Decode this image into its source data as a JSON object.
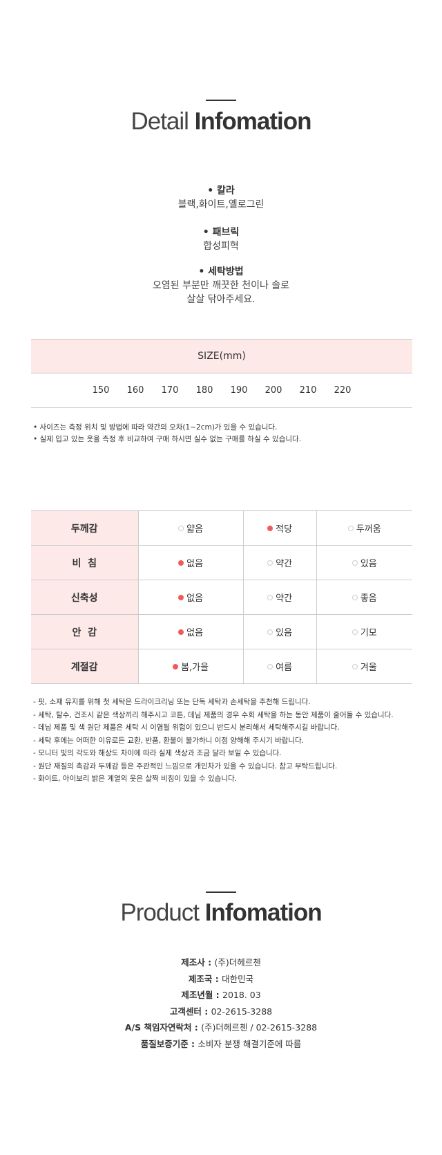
{
  "detail": {
    "title_light": "Detail",
    "title_bold": "Infomation"
  },
  "specs": [
    {
      "label": "칼라",
      "value": [
        "블랙,화이트,옐로그린"
      ]
    },
    {
      "label": "패브릭",
      "value": [
        "합성피혁"
      ]
    },
    {
      "label": "세탁방법",
      "value": [
        "오염된 부분만 깨끗한 천이나 솔로",
        "살살 닦아주세요."
      ]
    }
  ],
  "size": {
    "header": "SIZE(mm)",
    "values": [
      "150",
      "160",
      "170",
      "180",
      "190",
      "200",
      "210",
      "220"
    ],
    "notes": [
      "사이즈는 측정 위치 및 방법에 따라 약간의 오차(1~2cm)가 있을 수 있습니다.",
      "실제 입고 있는 옷을 측정 후 비교하여 구매 하시면 실수 없는 구매를 하실 수 있습니다."
    ]
  },
  "feel": {
    "accent": "#f25a5a",
    "rows": [
      {
        "label": "두께감",
        "options": [
          "얇음",
          "적당",
          "두꺼움"
        ],
        "selected": 1
      },
      {
        "label": "비  침",
        "options": [
          "없음",
          "약간",
          "있음"
        ],
        "selected": 0
      },
      {
        "label": "신축성",
        "options": [
          "없음",
          "약간",
          "좋음"
        ],
        "selected": 0
      },
      {
        "label": "안  감",
        "options": [
          "없음",
          "있음",
          "기모"
        ],
        "selected": 0
      },
      {
        "label": "계절감",
        "options": [
          "봄,가을",
          "여름",
          "겨울"
        ],
        "selected": 0
      }
    ]
  },
  "care_notes": [
    "- 핏, 소재 유지를 위해 첫 세탁은 드라이크리닝 또는 단독 세탁과 손세탁을 추천해 드립니다.",
    "- 세탁, 탈수, 건조시 같은 색상끼리 해주시고 코튼, 데님 제품의 경우 수회 세탁을 하는 동안 제품이 줄어들 수 있습니다.",
    "- 데님 제품 및 색 원단 제품은 세탁 시 이염될 위험이 있으니 반드시 분리해서 세탁해주시길 바랍니다.",
    "- 세탁 후에는 어떠한 이유로든 교환, 반품, 환불이 불가하니 이점 양해해 주시기 바랍니다.",
    "- 모니터 빛의 각도와 해상도 차이에 따라 실제 색상과 조금 달라 보일 수 있습니다.",
    "- 원단 재질의 촉감과 두께감 등은 주관적인 느낌으로 개인차가 있을 수 있습니다. 참고 부탁드립니다.",
    "- 화이트, 아이보리 밝은 계열의 옷은 살짝 비침이 있을 수 있습니다."
  ],
  "product": {
    "title_light": "Product",
    "title_bold": "Infomation",
    "items": [
      {
        "label": "제조사 : ",
        "value": "(주)더헤르첸"
      },
      {
        "label": "제조국 : ",
        "value": "대한민국"
      },
      {
        "label": "제조년월 : ",
        "value": "2018. 03"
      },
      {
        "label": "고객센터 : ",
        "value": "02-2615-3288"
      },
      {
        "label": "A/S 책임자연락처 : ",
        "value": "(주)더헤르첸 / 02-2615-3288"
      },
      {
        "label": "품질보증기준 : ",
        "value": "소비자 분쟁 해결기준에 따름"
      }
    ]
  }
}
